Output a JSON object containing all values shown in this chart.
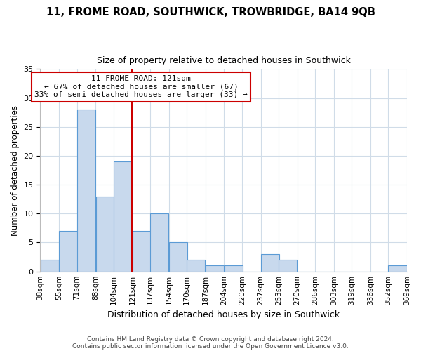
{
  "title": "11, FROME ROAD, SOUTHWICK, TROWBRIDGE, BA14 9QB",
  "subtitle": "Size of property relative to detached houses in Southwick",
  "xlabel": "Distribution of detached houses by size in Southwick",
  "ylabel": "Number of detached properties",
  "footer_line1": "Contains HM Land Registry data © Crown copyright and database right 2024.",
  "footer_line2": "Contains public sector information licensed under the Open Government Licence v3.0.",
  "bin_edges": [
    38,
    55,
    71,
    88,
    104,
    121,
    137,
    154,
    170,
    187,
    204,
    220,
    237,
    253,
    270,
    286,
    303,
    319,
    336,
    352,
    369
  ],
  "bin_labels": [
    "38sqm",
    "55sqm",
    "71sqm",
    "88sqm",
    "104sqm",
    "121sqm",
    "137sqm",
    "154sqm",
    "170sqm",
    "187sqm",
    "204sqm",
    "220sqm",
    "237sqm",
    "253sqm",
    "270sqm",
    "286sqm",
    "303sqm",
    "319sqm",
    "336sqm",
    "352sqm",
    "369sqm"
  ],
  "counts": [
    2,
    7,
    28,
    13,
    19,
    7,
    10,
    5,
    2,
    1,
    1,
    0,
    3,
    2,
    0,
    0,
    0,
    0,
    0,
    1
  ],
  "bar_color": "#c8d9ed",
  "bar_edge_color": "#5b9bd5",
  "vline_x": 121,
  "vline_color": "#cc0000",
  "annotation_line1": "11 FROME ROAD: 121sqm",
  "annotation_line2": "← 67% of detached houses are smaller (67)",
  "annotation_line3": "33% of semi-detached houses are larger (33) →",
  "annotation_box_color": "#ffffff",
  "annotation_box_edge": "#cc0000",
  "ylim": [
    0,
    35
  ],
  "yticks": [
    0,
    5,
    10,
    15,
    20,
    25,
    30,
    35
  ],
  "background_color": "#ffffff",
  "grid_color": "#d0dce8",
  "title_fontsize": 10.5,
  "subtitle_fontsize": 9
}
